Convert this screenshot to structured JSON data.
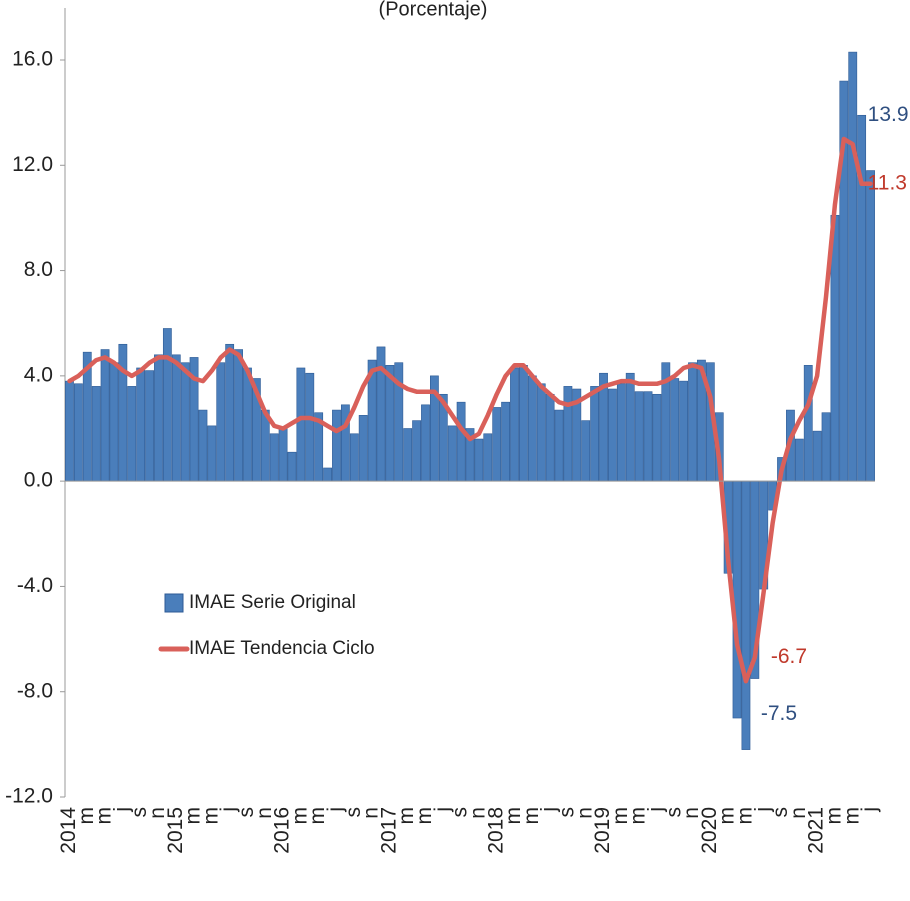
{
  "chart_data": {
    "type": "bar_line",
    "subtitle": "(Porcentaje)",
    "categories": [
      "2014",
      null,
      "m",
      null,
      "m",
      null,
      "j",
      null,
      "s",
      null,
      "n",
      null,
      "2015",
      null,
      "m",
      null,
      "m",
      null,
      "j",
      null,
      "s",
      null,
      "n",
      null,
      "2016",
      null,
      "m",
      null,
      "m",
      null,
      "j",
      null,
      "s",
      null,
      "n",
      null,
      "2017",
      null,
      "m",
      null,
      "m",
      null,
      "j",
      null,
      "s",
      null,
      "n",
      null,
      "2018",
      null,
      "m",
      null,
      "m",
      null,
      "j",
      null,
      "s",
      null,
      "n",
      null,
      "2019",
      null,
      "m",
      null,
      "m",
      null,
      "j",
      null,
      "s",
      null,
      "n",
      null,
      "2020",
      null,
      "m",
      null,
      "m",
      null,
      "j",
      null,
      "s",
      null,
      "n",
      null,
      "2021",
      null,
      "m",
      null,
      "m",
      null,
      "j"
    ],
    "series": [
      {
        "name": "IMAE Serie Original",
        "kind": "bar",
        "color": "#4a7ebb",
        "values": [
          3.8,
          3.7,
          4.9,
          3.6,
          5.0,
          4.5,
          5.2,
          3.6,
          4.3,
          4.2,
          4.8,
          5.8,
          4.8,
          4.5,
          4.7,
          2.7,
          2.1,
          4.5,
          5.2,
          5.0,
          4.3,
          3.9,
          2.7,
          1.8,
          2.0,
          1.1,
          4.3,
          4.1,
          2.6,
          0.5,
          2.7,
          2.9,
          1.8,
          2.5,
          4.6,
          5.1,
          4.4,
          4.5,
          2.0,
          2.3,
          2.9,
          4.0,
          3.3,
          2.1,
          3.0,
          2.0,
          1.6,
          1.8,
          2.8,
          3.0,
          4.3,
          4.4,
          4.0,
          3.7,
          3.3,
          2.7,
          3.6,
          3.5,
          2.3,
          3.6,
          4.1,
          3.5,
          3.7,
          4.1,
          3.4,
          3.4,
          3.3,
          4.5,
          3.9,
          3.8,
          4.5,
          4.6,
          4.5,
          2.6,
          -3.5,
          -9.0,
          -10.2,
          -7.5,
          -4.1,
          -1.1,
          0.9,
          2.7,
          1.6,
          4.4,
          1.9,
          2.6,
          10.1,
          15.2,
          16.3,
          13.9,
          11.8
        ],
        "value_labels": [
          null,
          null,
          null,
          null,
          null,
          null,
          null,
          null,
          null,
          null,
          null,
          null,
          null,
          null,
          null,
          null,
          null,
          null,
          null,
          null,
          null,
          null,
          null,
          null,
          null,
          null,
          null,
          null,
          null,
          null,
          null,
          null,
          null,
          null,
          null,
          null,
          null,
          null,
          null,
          null,
          null,
          null,
          null,
          null,
          null,
          null,
          null,
          null,
          null,
          null,
          null,
          null,
          null,
          null,
          null,
          null,
          null,
          null,
          null,
          null,
          null,
          null,
          null,
          null,
          null,
          null,
          null,
          null,
          null,
          null,
          null,
          null,
          null,
          null,
          null,
          null,
          null,
          "-7.5",
          null,
          null,
          null,
          null,
          null,
          null,
          null,
          null,
          null,
          null,
          null,
          "13.9",
          null
        ]
      },
      {
        "name": "IMAE Tendencia Ciclo",
        "kind": "line",
        "color": "#d9605a",
        "values": [
          3.8,
          4.0,
          4.3,
          4.6,
          4.7,
          4.5,
          4.2,
          4.0,
          4.2,
          4.5,
          4.7,
          4.7,
          4.5,
          4.2,
          3.9,
          3.8,
          4.2,
          4.7,
          5.0,
          4.8,
          4.2,
          3.4,
          2.6,
          2.1,
          2.0,
          2.2,
          2.4,
          2.4,
          2.3,
          2.1,
          1.9,
          2.1,
          2.8,
          3.6,
          4.2,
          4.3,
          4.0,
          3.7,
          3.5,
          3.4,
          3.4,
          3.4,
          3.0,
          2.5,
          2.0,
          1.6,
          1.8,
          2.5,
          3.3,
          4.0,
          4.4,
          4.4,
          4.0,
          3.6,
          3.3,
          3.0,
          2.9,
          3.0,
          3.2,
          3.4,
          3.6,
          3.7,
          3.8,
          3.8,
          3.7,
          3.7,
          3.7,
          3.8,
          4.0,
          4.3,
          4.4,
          4.3,
          3.2,
          0.8,
          -3.0,
          -6.2,
          -7.6,
          -6.7,
          -4.2,
          -1.6,
          0.4,
          1.6,
          2.3,
          2.9,
          4.0,
          7.0,
          10.5,
          13.0,
          12.8,
          11.3,
          11.3
        ],
        "value_labels": [
          null,
          null,
          null,
          null,
          null,
          null,
          null,
          null,
          null,
          null,
          null,
          null,
          null,
          null,
          null,
          null,
          null,
          null,
          null,
          null,
          null,
          null,
          null,
          null,
          null,
          null,
          null,
          null,
          null,
          null,
          null,
          null,
          null,
          null,
          null,
          null,
          null,
          null,
          null,
          null,
          null,
          null,
          null,
          null,
          null,
          null,
          null,
          null,
          null,
          null,
          null,
          null,
          null,
          null,
          null,
          null,
          null,
          null,
          null,
          null,
          null,
          null,
          null,
          null,
          null,
          null,
          null,
          null,
          null,
          null,
          null,
          null,
          null,
          null,
          null,
          null,
          null,
          "-6.7",
          null,
          null,
          null,
          null,
          null,
          null,
          null,
          null,
          null,
          null,
          null,
          "11.3",
          null
        ]
      }
    ],
    "ylim": [
      -12,
      16
    ],
    "yticks": [
      {
        "value": -12,
        "label": "-12.0"
      },
      {
        "value": -8,
        "label": "-8.0"
      },
      {
        "value": -4,
        "label": "-4.0"
      },
      {
        "value": 0,
        "label": "0.0"
      },
      {
        "value": 4,
        "label": "4.0"
      },
      {
        "value": 8,
        "label": "8.0"
      },
      {
        "value": 12,
        "label": "12.0"
      },
      {
        "value": 16,
        "label": "16.0"
      }
    ],
    "legend": "lower left",
    "grid": false
  }
}
